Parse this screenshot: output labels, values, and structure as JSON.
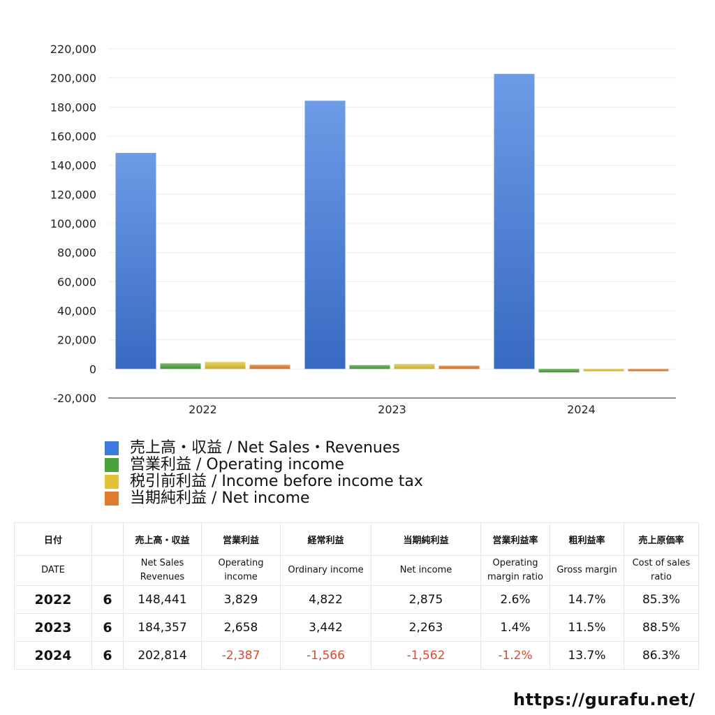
{
  "colors": {
    "net_sales": "#3e79dd",
    "operating_income": "#4aa33a",
    "income_before_tax": "#e1c334",
    "net_income": "#e07d2c",
    "negative_text": "#d94a35"
  },
  "chart_data": {
    "type": "bar",
    "categories": [
      "2022",
      "2023",
      "2024"
    ],
    "series": [
      {
        "name": "売上高・収益 / Net Sales・Revenues",
        "values": [
          148441,
          184357,
          202814
        ],
        "color": "#3e79dd"
      },
      {
        "name": "営業利益 / Operating income",
        "values": [
          3829,
          2658,
          -2387
        ],
        "color": "#4aa33a"
      },
      {
        "name": "税引前利益 / Income before income tax",
        "values": [
          4822,
          3442,
          -1566
        ],
        "color": "#e1c334"
      },
      {
        "name": "当期純利益 / Net income",
        "values": [
          2875,
          2263,
          -1562
        ],
        "color": "#e07d2c"
      }
    ],
    "ylim": [
      -20000,
      220000
    ],
    "yticks": [
      220000,
      200000,
      180000,
      160000,
      140000,
      120000,
      100000,
      80000,
      60000,
      40000,
      20000,
      0,
      -20000
    ],
    "ytick_labels": [
      "220,000",
      "200,000",
      "180,000",
      "160,000",
      "140,000",
      "120,000",
      "100,000",
      "80,000",
      "60,000",
      "40,000",
      "20,000",
      "0",
      "-20,000"
    ],
    "grid": true,
    "legend_position": "bottom-left"
  },
  "legend": {
    "items": [
      {
        "label": "売上高・収益 / Net Sales・Revenues",
        "color": "#3e79dd"
      },
      {
        "label": "営業利益 / Operating income",
        "color": "#4aa33a"
      },
      {
        "label": "税引前利益 / Income before income tax",
        "color": "#e1c334"
      },
      {
        "label": "当期純利益 / Net income",
        "color": "#e07d2c"
      }
    ]
  },
  "table": {
    "header_ja": {
      "date": "日付",
      "net_sales": "売上高・収益",
      "operating_income": "営業利益",
      "ordinary_income": "経常利益",
      "net_income": "当期純利益",
      "operating_margin": "営業利益率",
      "gross_margin": "粗利益率",
      "cost_ratio": "売上原価率"
    },
    "header_en": {
      "date": "DATE",
      "net_sales_1": "Net Sales",
      "net_sales_2": "Revenues",
      "operating_income_1": "Operating",
      "operating_income_2": "income",
      "ordinary_income": "Ordinary income",
      "net_income": "Net income",
      "operating_margin_1": "Operating",
      "operating_margin_2": "margin ratio",
      "gross_margin": "Gross margin",
      "cost_ratio_1": "Cost of sales",
      "cost_ratio_2": "ratio"
    },
    "rows": [
      {
        "year": "2022",
        "count": "6",
        "net_sales": "148,441",
        "operating_income": "3,829",
        "ordinary_income": "4,822",
        "net_income": "2,875",
        "operating_margin": "2.6%",
        "gross_margin": "14.7%",
        "cost_ratio": "85.3%"
      },
      {
        "year": "2023",
        "count": "6",
        "net_sales": "184,357",
        "operating_income": "2,658",
        "ordinary_income": "3,442",
        "net_income": "2,263",
        "operating_margin": "1.4%",
        "gross_margin": "11.5%",
        "cost_ratio": "88.5%"
      },
      {
        "year": "2024",
        "count": "6",
        "net_sales": "202,814",
        "operating_income": "-2,387",
        "ordinary_income": "-1,566",
        "net_income": "-1,562",
        "operating_margin": "-1.2%",
        "gross_margin": "13.7%",
        "cost_ratio": "86.3%"
      }
    ]
  },
  "footer": {
    "url": "https://gurafu.net/"
  }
}
